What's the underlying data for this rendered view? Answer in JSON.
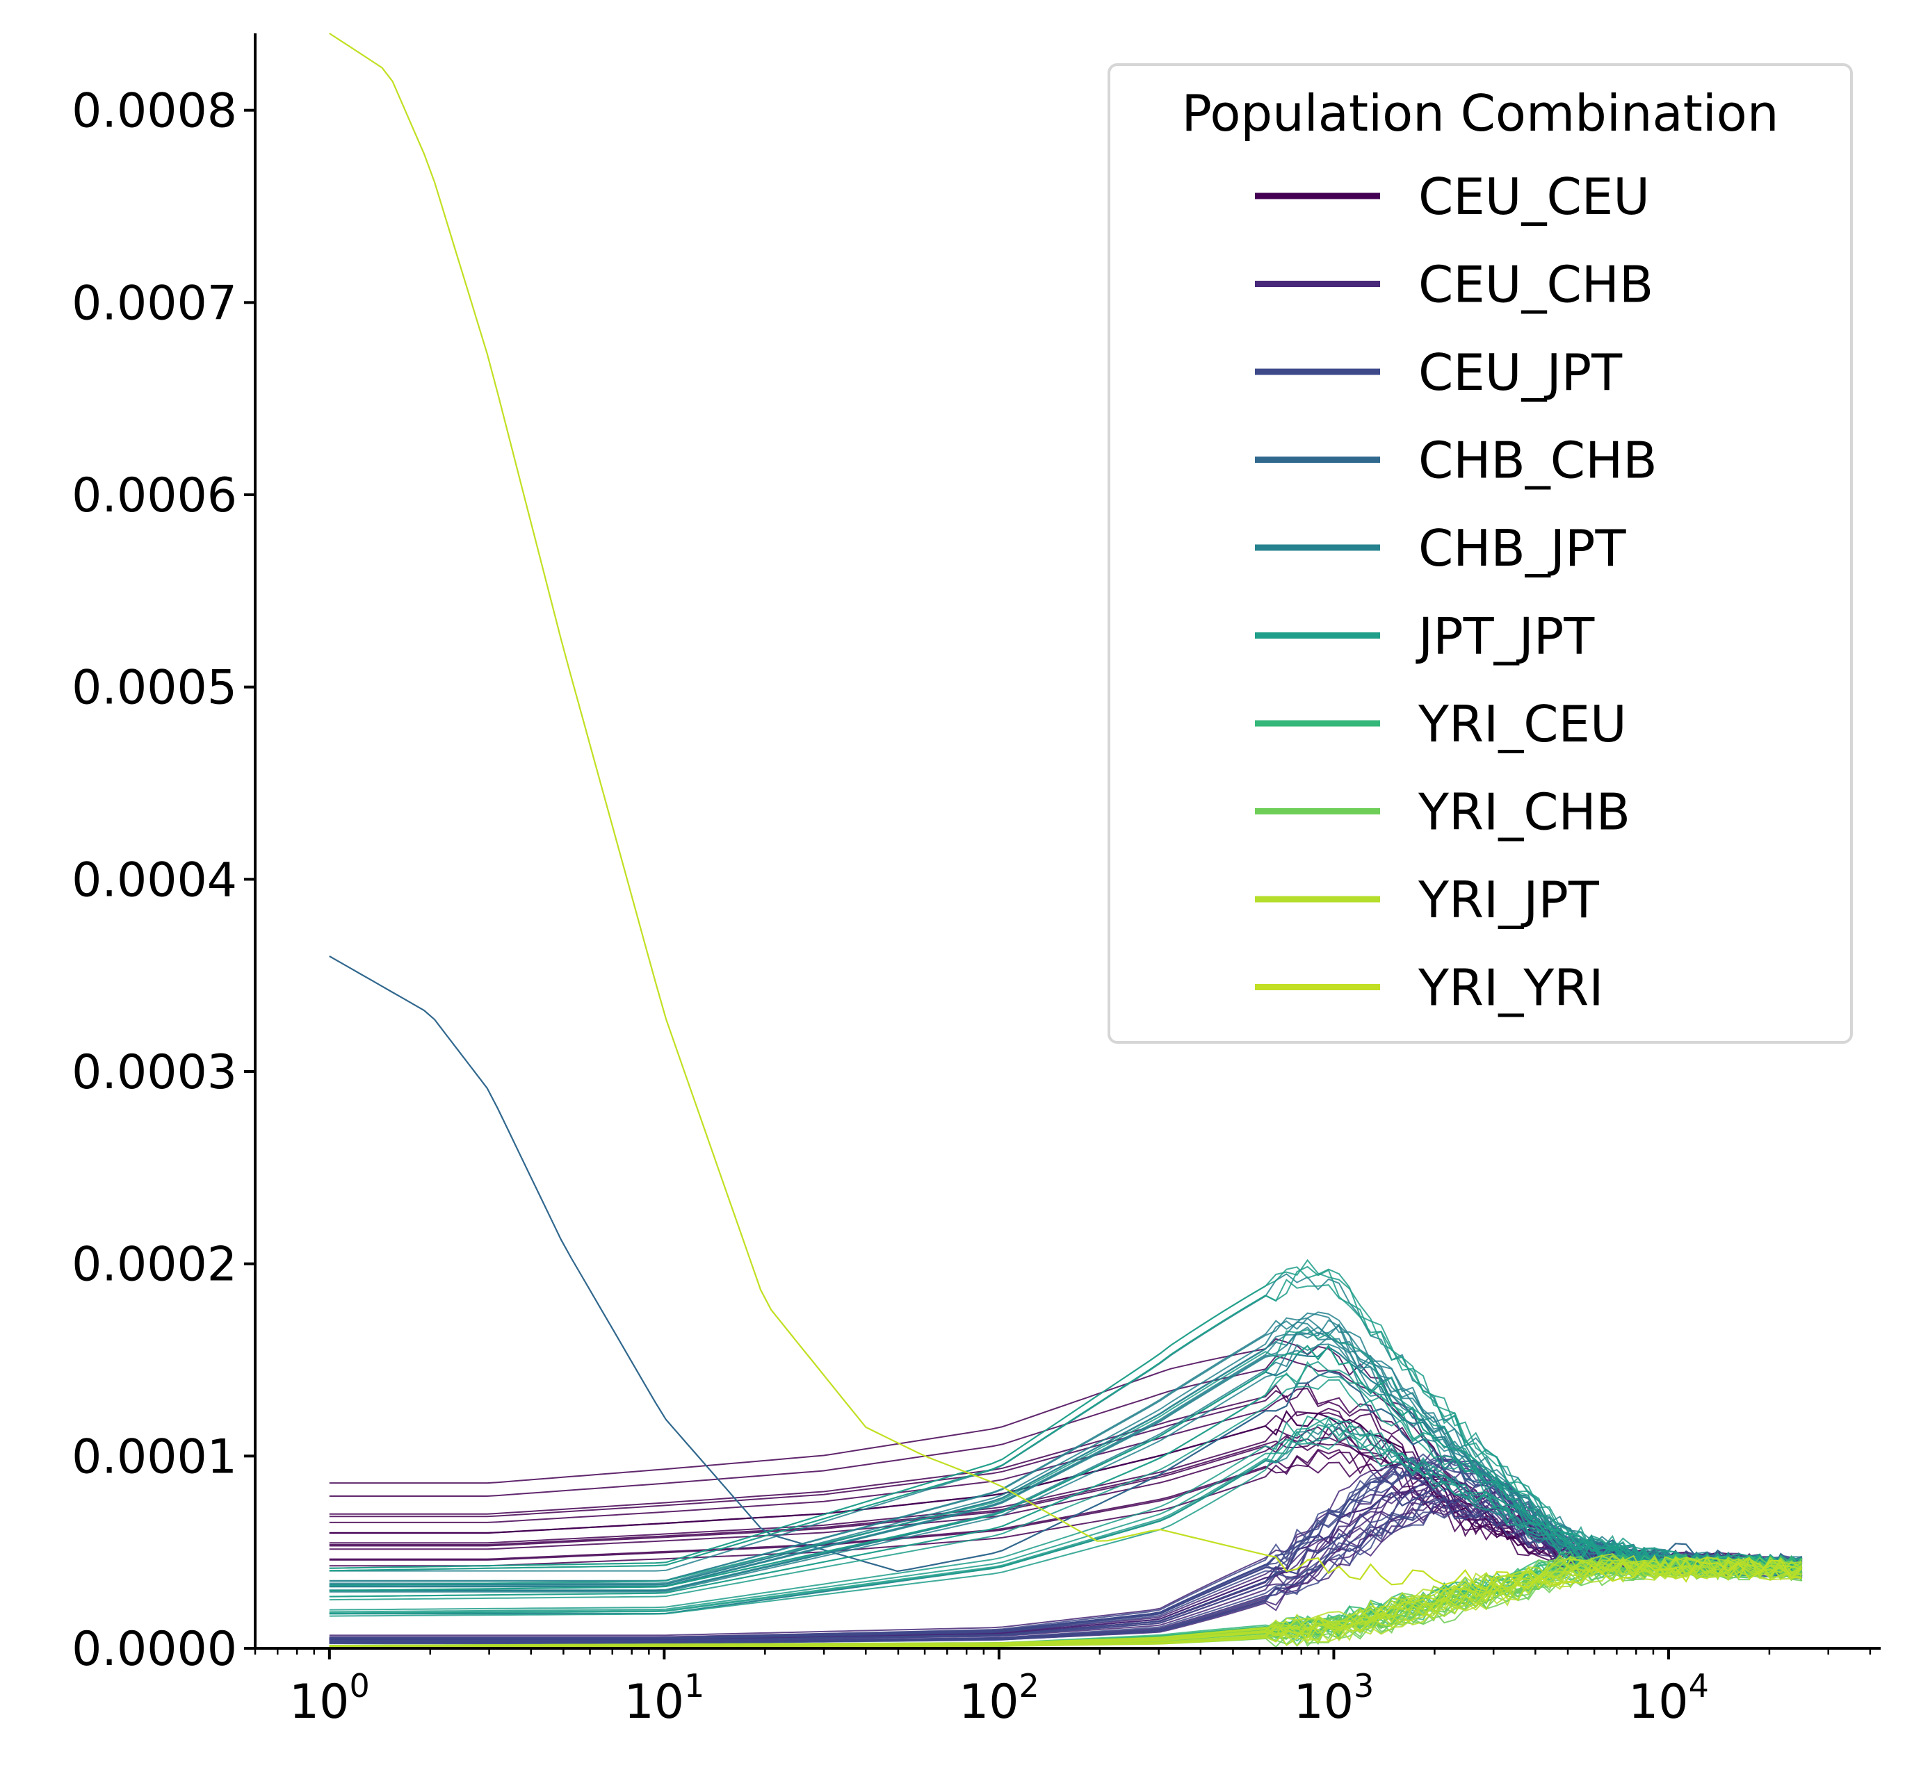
{
  "chart_data": {
    "type": "line",
    "title": "",
    "xlabel": "",
    "ylabel": "",
    "x_scale": "log",
    "xlim": [
      0.6,
      43000
    ],
    "ylim": [
      0,
      0.00084
    ],
    "x_tick_labels": [
      {
        "base": "10",
        "exp": "0",
        "value": 1
      },
      {
        "base": "10",
        "exp": "1",
        "value": 10
      },
      {
        "base": "10",
        "exp": "2",
        "value": 100
      },
      {
        "base": "10",
        "exp": "3",
        "value": 1000
      },
      {
        "base": "10",
        "exp": "4",
        "value": 10000
      }
    ],
    "y_ticks": [
      0,
      0.0001,
      0.0002,
      0.0003,
      0.0004,
      0.0005,
      0.0006,
      0.0007,
      0.0008
    ],
    "y_tick_labels": [
      "0.0000",
      "0.0001",
      "0.0002",
      "0.0003",
      "0.0004",
      "0.0005",
      "0.0006",
      "0.0007",
      "0.0008"
    ],
    "grid": false,
    "legend": {
      "title": "Population Combination",
      "position": "top-right",
      "entries": [
        {
          "name": "CEU_CEU",
          "color": "#440154"
        },
        {
          "name": "CEU_CHB",
          "color": "#482878"
        },
        {
          "name": "CEU_JPT",
          "color": "#3e4989"
        },
        {
          "name": "CHB_CHB",
          "color": "#31688e"
        },
        {
          "name": "CHB_JPT",
          "color": "#26828e"
        },
        {
          "name": "JPT_JPT",
          "color": "#1f9e89"
        },
        {
          "name": "YRI_CEU",
          "color": "#35b779"
        },
        {
          "name": "YRI_CHB",
          "color": "#6ece58"
        },
        {
          "name": "YRI_JPT",
          "color": "#b5de2b"
        },
        {
          "name": "YRI_YRI",
          "color": "#c2df23"
        }
      ]
    },
    "series": [
      {
        "name": "CEU_CEU",
        "color": "#440154",
        "x": [
          1,
          3,
          10,
          30,
          100,
          300,
          700,
          1000,
          1500,
          2500,
          5000,
          10000,
          25000
        ],
        "y": [
          6e-05,
          6e-05,
          6.5e-05,
          7e-05,
          8e-05,
          0.0001,
          0.000118,
          0.00012,
          0.000105,
          7e-05,
          4.8e-05,
          4.5e-05,
          4.2e-05
        ]
      },
      {
        "name": "CEU_CHB",
        "color": "#482878",
        "x": [
          1,
          10,
          100,
          300,
          700,
          1000,
          1500,
          2000,
          3000,
          5000,
          10000,
          25000
        ],
        "y": [
          5e-06,
          5e-06,
          8e-06,
          1.5e-05,
          4e-05,
          6e-05,
          8e-05,
          8.8e-05,
          8e-05,
          5e-05,
          4.5e-05,
          4.2e-05
        ]
      },
      {
        "name": "CEU_JPT",
        "color": "#3e4989",
        "x": [
          1,
          10,
          100,
          300,
          700,
          1000,
          1500,
          2000,
          3000,
          5000,
          10000,
          25000
        ],
        "y": [
          4e-06,
          4e-06,
          7e-06,
          1.4e-05,
          3.8e-05,
          5.8e-05,
          7.8e-05,
          8.6e-05,
          7.8e-05,
          5e-05,
          4.5e-05,
          4.2e-05
        ]
      },
      {
        "name": "CHB_CHB",
        "color": "#31688e",
        "x": [
          1,
          2,
          3,
          5,
          10,
          20,
          50,
          100,
          300,
          1000,
          2000,
          5000,
          25000
        ],
        "y": [
          0.00036,
          0.00033,
          0.00029,
          0.00021,
          0.00012,
          6e-05,
          4e-05,
          5e-05,
          9e-05,
          0.000145,
          0.0001,
          5.5e-05,
          4.2e-05
        ]
      },
      {
        "name": "CHB_JPT",
        "color": "#26828e",
        "x": [
          1,
          10,
          100,
          300,
          800,
          1000,
          2000,
          5000,
          10000,
          25000
        ],
        "y": [
          3e-05,
          3e-05,
          7e-05,
          0.00011,
          0.000155,
          0.000155,
          0.00011,
          5.5e-05,
          4.5e-05,
          4.2e-05
        ]
      },
      {
        "name": "JPT_JPT",
        "color": "#1f9e89",
        "x": [
          1,
          10,
          100,
          300,
          800,
          1000,
          2000,
          5000,
          10000,
          25000
        ],
        "y": [
          3e-05,
          3.2e-05,
          7e-05,
          0.00011,
          0.000155,
          0.000155,
          0.00011,
          5.5e-05,
          4.5e-05,
          4.2e-05
        ]
      },
      {
        "name": "YRI_CEU",
        "color": "#35b779",
        "x": [
          1,
          100,
          300,
          1000,
          3000,
          5000,
          10000,
          25000
        ],
        "y": [
          1e-06,
          2e-06,
          5e-06,
          1.2e-05,
          3.2e-05,
          4.2e-05,
          4.3e-05,
          4.2e-05
        ]
      },
      {
        "name": "YRI_CHB",
        "color": "#6ece58",
        "x": [
          1,
          100,
          300,
          1000,
          3000,
          5000,
          10000,
          25000
        ],
        "y": [
          1e-06,
          2e-06,
          4e-06,
          1e-05,
          3e-05,
          4e-05,
          4.2e-05,
          4.1e-05
        ]
      },
      {
        "name": "YRI_JPT",
        "color": "#b5de2b",
        "x": [
          1,
          100,
          300,
          1000,
          3000,
          5000,
          10000,
          25000
        ],
        "y": [
          1e-06,
          2e-06,
          4e-06,
          1.1e-05,
          3.1e-05,
          4.1e-05,
          4.2e-05,
          4.1e-05
        ]
      },
      {
        "name": "YRI_YRI",
        "color": "#c2df23",
        "x": [
          1,
          1.5,
          2,
          3,
          5,
          10,
          20,
          40,
          60,
          100,
          200,
          300,
          1000,
          3000,
          10000,
          25000
        ],
        "y": [
          0.00084,
          0.00082,
          0.00077,
          0.00067,
          0.00052,
          0.00033,
          0.00018,
          0.000115,
          0.0001,
          8.5e-05,
          5.5e-05,
          6.2e-05,
          4e-05,
          3.5e-05,
          4e-05,
          4e-05
        ]
      }
    ]
  }
}
